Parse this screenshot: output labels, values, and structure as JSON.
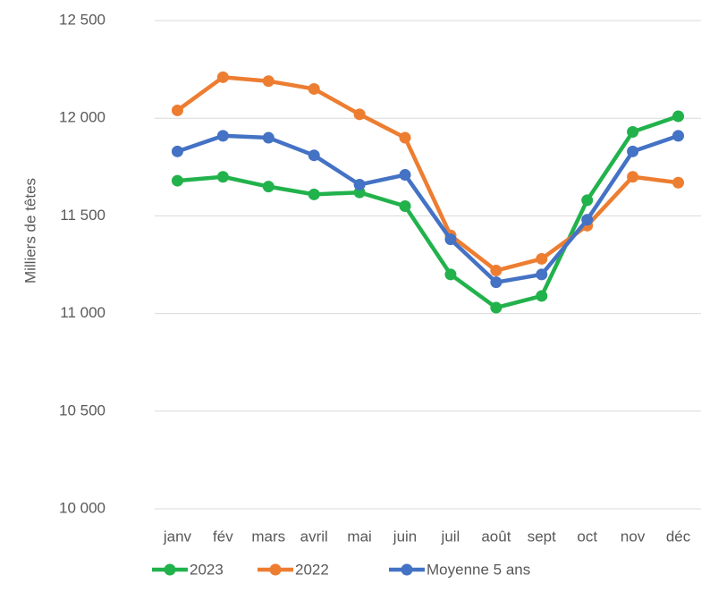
{
  "chart_data": {
    "type": "line",
    "y_label": "Milliers de têtes",
    "categories": [
      "janv",
      "fév",
      "mars",
      "avril",
      "mai",
      "juin",
      "juil",
      "août",
      "sept",
      "oct",
      "nov",
      "déc"
    ],
    "series": [
      {
        "name": "2023",
        "color": "#22b24c",
        "values": [
          11680,
          11700,
          11650,
          11610,
          11620,
          11550,
          11200,
          11030,
          11090,
          11580,
          11930,
          12010
        ]
      },
      {
        "name": "2022",
        "color": "#ed7d31",
        "values": [
          12040,
          12210,
          12190,
          12150,
          12020,
          11900,
          11400,
          11220,
          11280,
          11450,
          11700,
          11670
        ]
      },
      {
        "name": "Moyenne 5 ans",
        "color": "#4472c4",
        "values": [
          11830,
          11910,
          11900,
          11810,
          11660,
          11710,
          11380,
          11160,
          11200,
          11480,
          11830,
          11910
        ]
      }
    ],
    "ylim": [
      10000,
      12500
    ],
    "yticks": [
      {
        "value": 10000,
        "label": "10 000"
      },
      {
        "value": 10500,
        "label": "10 500"
      },
      {
        "value": 11000,
        "label": "11 000"
      },
      {
        "value": 11500,
        "label": "11 500"
      },
      {
        "value": 12000,
        "label": "12 000"
      },
      {
        "value": 12500,
        "label": "12 500"
      }
    ],
    "grid": true
  }
}
